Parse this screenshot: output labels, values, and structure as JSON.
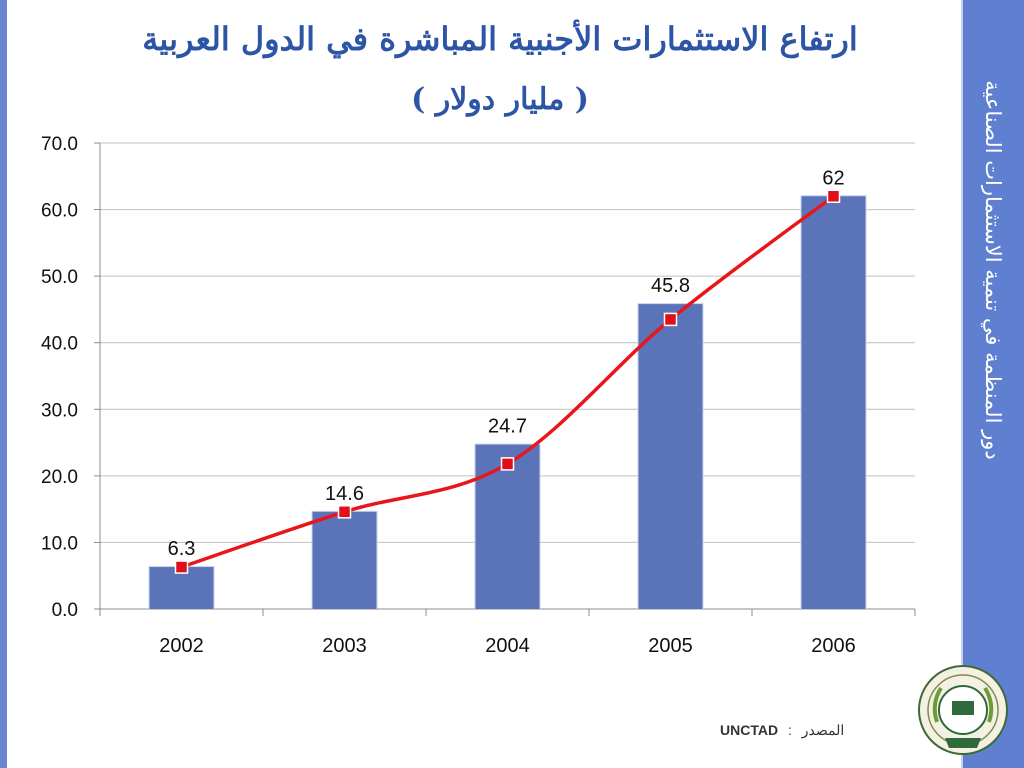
{
  "slide": {
    "title_line1": "ارتفاع الاستثمارات الأجنبية المباشرة في الدول العربية",
    "title_line2": "( مليار دولار )",
    "side_text": "دور المنظمة في تنمية الاستثمارات الصناعية",
    "source_label": "المصدر",
    "source_separator": ":",
    "source_value": "UNCTAD",
    "logo_text": "AIDMO"
  },
  "colors": {
    "bar": "#5a73b9",
    "line": "#e8161b",
    "marker": "#e0101a",
    "title": "#2d55a6",
    "band": "#5f7fd0"
  },
  "chart_data": {
    "type": "bar",
    "categories": [
      "2002",
      "2003",
      "2004",
      "2005",
      "2006"
    ],
    "values": [
      6.3,
      14.6,
      24.7,
      45.8,
      62
    ],
    "value_labels": [
      "6.3",
      "14.6",
      "24.7",
      "45.8",
      "62"
    ],
    "line_values": [
      6.3,
      14.6,
      21.8,
      43.5,
      62
    ],
    "ylim": [
      0,
      70
    ],
    "yticks": [
      "0.0",
      "10.0",
      "20.0",
      "30.0",
      "40.0",
      "50.0",
      "60.0",
      "70.0"
    ],
    "grid": true,
    "legend": "none",
    "title": "",
    "xlabel": "",
    "ylabel": ""
  }
}
